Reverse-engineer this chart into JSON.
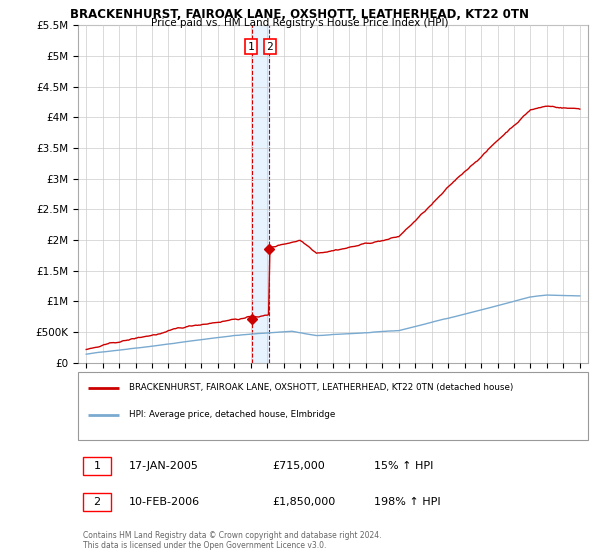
{
  "title": "BRACKENHURST, FAIROAK LANE, OXSHOTT, LEATHERHEAD, KT22 0TN",
  "subtitle": "Price paid vs. HM Land Registry's House Price Index (HPI)",
  "hpi_color": "#7aaad0",
  "price_color": "#cc0000",
  "dashed_color": "#cc0000",
  "shade_color": "#ddeeff",
  "bg_color": "#ffffff",
  "grid_color": "#cccccc",
  "ylim": [
    0,
    5500000
  ],
  "yticks": [
    0,
    500000,
    1000000,
    1500000,
    2000000,
    2500000,
    3000000,
    3500000,
    4000000,
    4500000,
    5000000,
    5500000
  ],
  "ytick_labels": [
    "£0",
    "£500K",
    "£1M",
    "£1.5M",
    "£2M",
    "£2.5M",
    "£3M",
    "£3.5M",
    "£4M",
    "£4.5M",
    "£5M",
    "£5.5M"
  ],
  "x_start": 1994.5,
  "x_end": 2025.5,
  "xticks": [
    1995,
    1996,
    1997,
    1998,
    1999,
    2000,
    2001,
    2002,
    2003,
    2004,
    2005,
    2006,
    2007,
    2008,
    2009,
    2010,
    2011,
    2012,
    2013,
    2014,
    2015,
    2016,
    2017,
    2018,
    2019,
    2020,
    2021,
    2022,
    2023,
    2024,
    2025
  ],
  "sale1_x": 2005.05,
  "sale1_y": 715000,
  "sale1_label": "1",
  "sale1_date": "17-JAN-2005",
  "sale1_price": "£715,000",
  "sale1_hpi": "15% ↑ HPI",
  "sale2_x": 2006.12,
  "sale2_y": 1850000,
  "sale2_label": "2",
  "sale2_date": "10-FEB-2006",
  "sale2_price": "£1,850,000",
  "sale2_hpi": "198% ↑ HPI",
  "legend_line1": "BRACKENHURST, FAIROAK LANE, OXSHOTT, LEATHERHEAD, KT22 0TN (detached house)",
  "legend_line2": "HPI: Average price, detached house, Elmbridge",
  "footer": "Contains HM Land Registry data © Crown copyright and database right 2024.\nThis data is licensed under the Open Government Licence v3.0."
}
